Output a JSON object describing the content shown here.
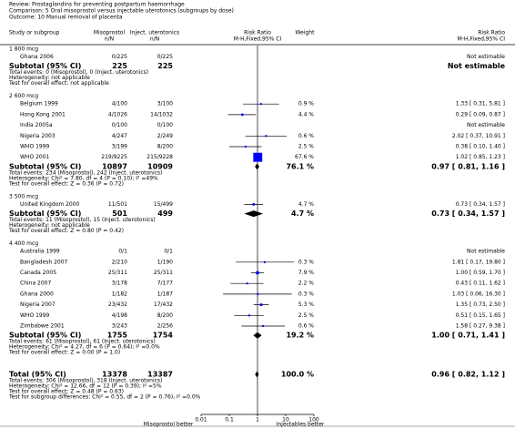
{
  "header": {
    "review": "Review:  Prostaglandins for preventing postpartum haemorrhage",
    "comparison": "Comparison:  5 Oral misoprostol versus injectable uterotonics (subgroups by dose)",
    "outcome": "Outcome:  10 Manual removal of placenta"
  },
  "columns": {
    "study": "Study or subgroup",
    "mis": "Misoprostol",
    "mis_sub": "n/N",
    "inj": "Inject. uterotonics",
    "inj_sub": "n/N",
    "rr": "Risk Ratio",
    "rr_sub": "M-H,Fixed,95% CI",
    "weight": "Weight",
    "rr2": "Risk Ratio",
    "rr2_sub": "M-H,Fixed,95% CI"
  },
  "groups": [
    {
      "name": "1 800 mcg",
      "studies": [
        {
          "name": "Ghana 2006",
          "mis": "0/225",
          "inj": "0/225",
          "result": "Not estimable"
        }
      ],
      "subtotal": {
        "label": "Subtotal (95% CI)",
        "mis": 225,
        "inj": 225,
        "result": "Not estimable"
      },
      "notes": [
        "Total events: 0 (Misoprostol), 0 (Inject. uterotonics)",
        "Heterogeneity: not applicable",
        "Test for overall effect: not applicable"
      ]
    },
    {
      "name": "2 600 mcg",
      "studies": [
        {
          "name": "Belgium 1999",
          "mis": "4/100",
          "inj": "3/100",
          "weight": {
            "value": 0.9,
            "label": "0.9 %"
          },
          "ci": {
            "rr": 1.33,
            "lo": 0.31,
            "hi": 5.81,
            "label": "1.33 [ 0.31, 5.81 ]"
          }
        },
        {
          "name": "Hong Kong 2001",
          "mis": "4/1026",
          "inj": "14/1032",
          "weight": {
            "value": 4.4,
            "label": "4.4 %"
          },
          "ci": {
            "rr": 0.29,
            "lo": 0.09,
            "hi": 0.87,
            "label": "0.29 [ 0.09, 0.87 ]"
          }
        },
        {
          "name": "India 2005a",
          "mis": "0/100",
          "inj": "0/100",
          "result": "Not estimable"
        },
        {
          "name": "Nigeria 2003",
          "mis": "4/247",
          "inj": "2/249",
          "weight": {
            "value": 0.6,
            "label": "0.6 %"
          },
          "ci": {
            "rr": 2.02,
            "lo": 0.37,
            "hi": 10.91,
            "label": "2.02 [ 0.37, 10.91 ]"
          }
        },
        {
          "name": "WHO 1999",
          "mis": "3/199",
          "inj": "8/200",
          "weight": {
            "value": 2.5,
            "label": "2.5 %"
          },
          "ci": {
            "rr": 0.38,
            "lo": 0.1,
            "hi": 1.4,
            "label": "0.38 [ 0.10, 1.40 ]"
          }
        },
        {
          "name": "WHO 2001",
          "mis": "219/9225",
          "inj": "215/9228",
          "weight": {
            "value": 67.6,
            "label": "67.6 %"
          },
          "ci": {
            "rr": 1.02,
            "lo": 0.85,
            "hi": 1.23,
            "label": "1.02 [ 0.85, 1.23 ]"
          }
        }
      ],
      "subtotal": {
        "label": "Subtotal (95% CI)",
        "mis": 10897,
        "inj": 10909,
        "weight": {
          "value": 76.1,
          "label": "76.1 %"
        },
        "ci": {
          "rr": 0.97,
          "lo": 0.81,
          "hi": 1.16,
          "label": "0.97 [ 0.81, 1.16 ]"
        }
      },
      "notes": [
        "Total events: 234 (Misoprostol), 242 (Inject. uterotonics)",
        "Heterogeneity: Chi² = 7.80, df = 4 (P = 0.10); I² =49%",
        "Test for overall effect: Z = 0.36 (P = 0.72)"
      ]
    },
    {
      "name": "3 500 mcg",
      "studies": [
        {
          "name": "United Kingdom 2000",
          "mis": "11/501",
          "inj": "15/499",
          "weight": {
            "value": 4.7,
            "label": "4.7 %"
          },
          "ci": {
            "rr": 0.73,
            "lo": 0.34,
            "hi": 1.57,
            "label": "0.73 [ 0.34, 1.57 ]"
          }
        }
      ],
      "subtotal": {
        "label": "Subtotal (95% CI)",
        "mis": 501,
        "inj": 499,
        "weight": {
          "value": 4.7,
          "label": "4.7 %"
        },
        "ci": {
          "rr": 0.73,
          "lo": 0.34,
          "hi": 1.57,
          "label": "0.73 [ 0.34, 1.57 ]"
        }
      },
      "notes": [
        "Total events: 11 (Misoprostol), 15 (Inject. uterotonics)",
        "Heterogeneity: not applicable",
        "Test for overall effect: Z = 0.80 (P = 0.42)"
      ]
    },
    {
      "name": "4 400 mcg",
      "studies": [
        {
          "name": "Australia 1999",
          "mis": "0/1",
          "inj": "0/1",
          "result": "Not estimable"
        },
        {
          "name": "Bangladesh 2007",
          "mis": "2/210",
          "inj": "1/190",
          "weight": {
            "value": 0.3,
            "label": "0.3 %"
          },
          "ci": {
            "rr": 1.81,
            "lo": 0.17,
            "hi": 19.8,
            "label": "1.81 [ 0.17, 19.80 ]"
          }
        },
        {
          "name": "Canada 2005",
          "mis": "25/311",
          "inj": "25/311",
          "weight": {
            "value": 7.9,
            "label": "7.9 %"
          },
          "ci": {
            "rr": 1.0,
            "lo": 0.59,
            "hi": 1.7,
            "label": "1.00 [ 0.59, 1.70 ]"
          }
        },
        {
          "name": "China 2007",
          "mis": "3/178",
          "inj": "7/177",
          "weight": {
            "value": 2.2,
            "label": "2.2 %"
          },
          "ci": {
            "rr": 0.43,
            "lo": 0.11,
            "hi": 1.62,
            "label": "0.43 [ 0.11, 1.62 ]"
          }
        },
        {
          "name": "Ghana 2000",
          "mis": "1/182",
          "inj": "1/187",
          "weight": {
            "value": 0.3,
            "label": "0.3 %"
          },
          "ci": {
            "rr": 1.03,
            "lo": 0.06,
            "hi": 16.3,
            "label": "1.03 [ 0.06, 16.30 ]"
          }
        },
        {
          "name": "Nigeria 2007",
          "mis": "23/432",
          "inj": "17/432",
          "weight": {
            "value": 5.3,
            "label": "5.3 %"
          },
          "ci": {
            "rr": 1.35,
            "lo": 0.73,
            "hi": 2.5,
            "label": "1.35 [ 0.73, 2.50 ]"
          }
        },
        {
          "name": "WHO 1999",
          "mis": "4/198",
          "inj": "8/200",
          "weight": {
            "value": 2.5,
            "label": "2.5 %"
          },
          "ci": {
            "rr": 0.51,
            "lo": 0.15,
            "hi": 1.65,
            "label": "0.51 [ 0.15, 1.65 ]"
          }
        },
        {
          "name": "Zimbabwe 2001",
          "mis": "3/243",
          "inj": "2/256",
          "weight": {
            "value": 0.6,
            "label": "0.6 %"
          },
          "ci": {
            "rr": 1.58,
            "lo": 0.27,
            "hi": 9.38,
            "label": "1.58 [ 0.27, 9.38 ]"
          }
        }
      ],
      "subtotal": {
        "label": "Subtotal (95% CI)",
        "mis": 1755,
        "inj": 1754,
        "weight": {
          "value": 19.2,
          "label": "19.2 %"
        },
        "ci": {
          "rr": 1.0,
          "lo": 0.71,
          "hi": 1.41,
          "label": "1.00 [ 0.71, 1.41 ]"
        }
      },
      "notes": [
        "Total events: 61 (Misoprostol), 61 (Inject. uterotonics)",
        "Heterogeneity: Chi² = 4.27, df = 6 (P = 0.64); I² =0.0%",
        "Test for overall effect: Z = 0.00 (P = 1.0)"
      ]
    }
  ],
  "total": {
    "label": "Total (95% CI)",
    "mis": 13378,
    "inj": 13387,
    "weight": {
      "value": 100.0,
      "label": "100.0 %"
    },
    "ci": {
      "rr": 0.96,
      "lo": 0.82,
      "hi": 1.12,
      "label": "0.96 [ 0.82, 1.12 ]"
    },
    "notes": [
      "Total events: 306 (Misoprostol), 318 (Inject. uterotonics)",
      "Heterogeneity: Chi² = 12.66, df = 12 (P = 0.39); I² =5%",
      "Test for overall effect: Z = 0.48 (P = 0.63)",
      "Test for subgroup differences: Chi² = 0.55, df = 2 (P = 0.76), I² =0.0%"
    ]
  },
  "axis": {
    "ticks": [
      0.01,
      0.1,
      1,
      10,
      100
    ],
    "left": "Misoprostol better",
    "right": "Injectables better"
  }
}
